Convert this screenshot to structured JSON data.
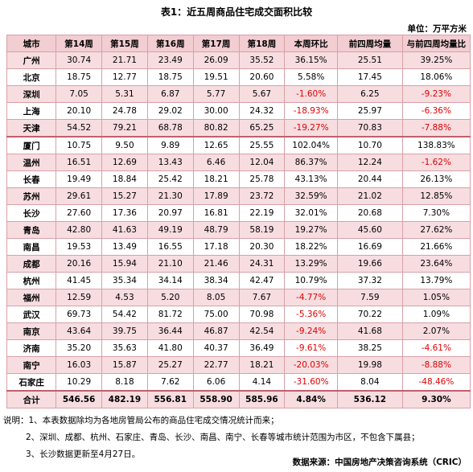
{
  "header": {
    "title": "表1：近五周商品住宅成交面积比较",
    "unit": "单位：万平方米"
  },
  "table": {
    "columns": [
      "城市",
      "第14周",
      "第15周",
      "第16周",
      "第17周",
      "第18周",
      "本周环比",
      "前四周均量",
      "与前四周均量比"
    ],
    "rows": [
      [
        "广州",
        "30.74",
        "21.71",
        "23.49",
        "26.09",
        "35.52",
        "36.15%",
        "25.51",
        "39.25%"
      ],
      [
        "北京",
        "18.75",
        "12.77",
        "18.75",
        "19.51",
        "20.60",
        "5.58%",
        "17.45",
        "18.06%"
      ],
      [
        "深圳",
        "7.05",
        "5.31",
        "6.87",
        "5.77",
        "5.67",
        "-1.60%",
        "6.25",
        "-9.23%"
      ],
      [
        "上海",
        "20.10",
        "24.78",
        "29.02",
        "30.00",
        "24.32",
        "-18.93%",
        "25.97",
        "-6.36%"
      ],
      [
        "天津",
        "54.52",
        "79.21",
        "68.78",
        "80.82",
        "65.25",
        "-19.27%",
        "70.83",
        "-7.88%"
      ],
      [
        "厦门",
        "10.75",
        "9.50",
        "9.89",
        "12.65",
        "25.55",
        "102.04%",
        "10.70",
        "138.83%"
      ],
      [
        "温州",
        "16.51",
        "12.69",
        "13.43",
        "6.46",
        "12.04",
        "86.37%",
        "12.24",
        "-1.62%"
      ],
      [
        "长春",
        "19.49",
        "18.84",
        "25.42",
        "18.21",
        "25.78",
        "43.13%",
        "20.44",
        "26.13%"
      ],
      [
        "苏州",
        "29.61",
        "15.27",
        "21.30",
        "17.89",
        "23.72",
        "32.59%",
        "21.02",
        "12.85%"
      ],
      [
        "长沙",
        "27.60",
        "17.36",
        "20.97",
        "16.81",
        "22.19",
        "32.01%",
        "20.68",
        "7.30%"
      ],
      [
        "青岛",
        "42.80",
        "41.63",
        "49.19",
        "48.79",
        "58.19",
        "19.27%",
        "45.60",
        "27.62%"
      ],
      [
        "南昌",
        "19.53",
        "13.49",
        "16.55",
        "17.18",
        "20.30",
        "18.22%",
        "16.69",
        "21.66%"
      ],
      [
        "成都",
        "20.16",
        "15.94",
        "21.10",
        "21.46",
        "24.31",
        "13.29%",
        "19.66",
        "23.64%"
      ],
      [
        "杭州",
        "41.45",
        "35.34",
        "34.14",
        "38.34",
        "42.47",
        "10.79%",
        "37.32",
        "13.79%"
      ],
      [
        "福州",
        "12.59",
        "4.53",
        "5.20",
        "8.05",
        "7.67",
        "-4.77%",
        "7.59",
        "1.05%"
      ],
      [
        "武汉",
        "69.73",
        "54.42",
        "81.72",
        "75.00",
        "70.98",
        "-5.36%",
        "70.22",
        "1.09%"
      ],
      [
        "南京",
        "43.64",
        "39.75",
        "36.44",
        "46.87",
        "42.54",
        "-9.24%",
        "41.68",
        "2.07%"
      ],
      [
        "济南",
        "35.20",
        "35.63",
        "41.80",
        "40.37",
        "36.49",
        "-9.61%",
        "38.25",
        "-4.61%"
      ],
      [
        "南宁",
        "16.03",
        "15.87",
        "25.27",
        "22.77",
        "18.21",
        "-20.03%",
        "19.98",
        "-8.88%"
      ],
      [
        "石家庄",
        "10.29",
        "8.18",
        "7.62",
        "6.06",
        "4.14",
        "-31.60%",
        "8.04",
        "-48.46%"
      ],
      [
        "合计",
        "546.56",
        "482.19",
        "556.81",
        "558.90",
        "585.96",
        "4.84%",
        "536.12",
        "9.30%"
      ]
    ]
  },
  "notes": [
    "说明：1、本表数据除均为各地房管局公布的商品住宅成交情况统计而来；",
    "2、深圳、成都、杭州、石家庄、青岛、长沙、南昌、南宁、长春等城市统计范围为市区，不包含下属县；",
    "3、长沙数据更新至4月27日。"
  ],
  "source": "数据来源：中国房地产决策咨询系统（CRIC）"
}
